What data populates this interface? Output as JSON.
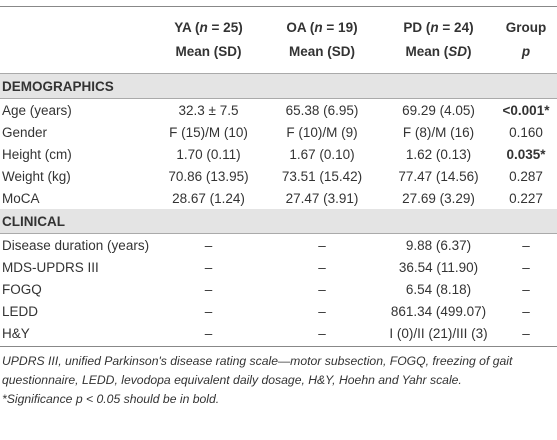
{
  "table": {
    "header": [
      {
        "line1": [
          "",
          ""
        ],
        "line2": [
          "",
          ""
        ]
      },
      {
        "line1": [
          "YA (",
          "n",
          " = 25)"
        ],
        "line2": [
          "Mean (SD)"
        ]
      },
      {
        "line1": [
          "OA (",
          "n",
          " = 19)"
        ],
        "line2": [
          "Mean (SD)"
        ]
      },
      {
        "line1": [
          "PD (",
          "n",
          " = 24)"
        ],
        "line2": [
          "Mean (",
          "SD",
          ")"
        ]
      },
      {
        "line1": [
          "Group"
        ],
        "line2": [
          "",
          "p"
        ]
      }
    ],
    "sections": [
      {
        "title": "DEMOGRAPHICS",
        "rows": [
          [
            "Age (years)",
            "32.3 ± 7.5",
            "65.38 (6.95)",
            "69.29 (4.05)",
            {
              "text": "<0.001*",
              "bold": true
            }
          ],
          [
            "Gender",
            "F (15)/M (10)",
            "F (10)/M (9)",
            "F (8)/M (16)",
            "0.160"
          ],
          [
            "Height (cm)",
            "1.70 (0.11)",
            "1.67 (0.10)",
            "1.62 (0.13)",
            {
              "text": "0.035*",
              "bold": true
            }
          ],
          [
            "Weight (kg)",
            "70.86 (13.95)",
            "73.51 (15.42)",
            "77.47 (14.56)",
            "0.287"
          ],
          [
            "MoCA",
            "28.67 (1.24)",
            "27.47 (3.91)",
            "27.69 (3.29)",
            "0.227"
          ]
        ]
      },
      {
        "title": "CLINICAL",
        "rows": [
          [
            "Disease duration (years)",
            "–",
            "–",
            "9.88 (6.37)",
            "–"
          ],
          [
            "MDS-UPDRS III",
            "–",
            "–",
            "36.54 (11.90)",
            "–"
          ],
          [
            "FOGQ",
            "–",
            "–",
            "6.54 (8.18)",
            "–"
          ],
          [
            "LEDD",
            "–",
            "–",
            "861.34 (499.07)",
            "–"
          ],
          [
            "H&Y",
            "–",
            "–",
            "I (0)/II (21)/III (3)",
            "–"
          ]
        ]
      }
    ],
    "footnotes": [
      "UPDRS III, unified Parkinson's disease rating scale—motor subsection, FOGQ, freezing of gait questionnaire, LEDD, levodopa equivalent daily dosage, H&Y, Hoehn and Yahr scale.",
      "*Significance p < 0.05 should be in bold."
    ]
  }
}
